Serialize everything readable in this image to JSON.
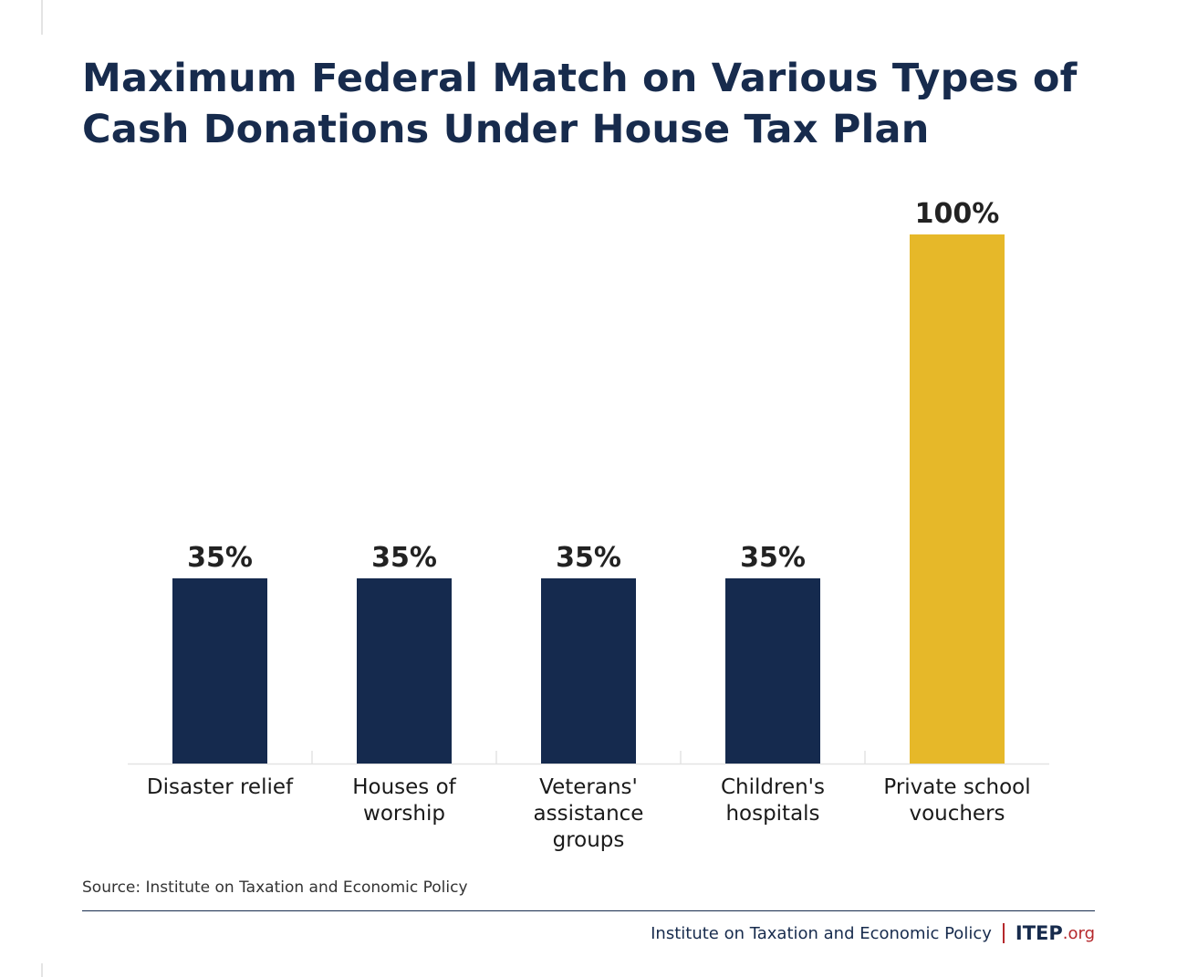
{
  "chart_data": {
    "type": "bar",
    "title": "Maximum Federal Match on Various Types of Cash Donations Under House Tax Plan",
    "categories": [
      [
        "Disaster relief"
      ],
      [
        "Houses of",
        "worship"
      ],
      [
        "Veterans'",
        "assistance",
        "groups"
      ],
      [
        "Children's",
        "hospitals"
      ],
      [
        "Private school",
        "vouchers"
      ]
    ],
    "values": [
      35,
      35,
      35,
      35,
      100
    ],
    "value_labels": [
      "35%",
      "35%",
      "35%",
      "35%",
      "100%"
    ],
    "colors": [
      "#152a4e",
      "#152a4e",
      "#152a4e",
      "#152a4e",
      "#e6b829"
    ],
    "ylim": [
      0,
      100
    ],
    "xlabel": "",
    "ylabel": "",
    "grid": false
  },
  "source": "Source: Institute on Taxation and Economic Policy",
  "footer": {
    "org_name": "Institute on Taxation and Economic Policy",
    "brand_main": "ITEP",
    "brand_suffix": ".org"
  }
}
